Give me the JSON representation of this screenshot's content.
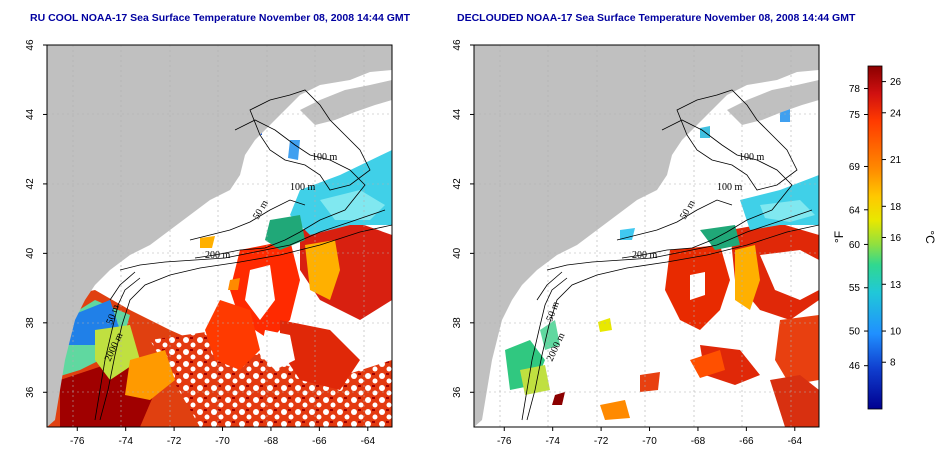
{
  "titles": {
    "left": "RU COOL NOAA-17 Sea Surface Temperature November 08, 2008 14:44 GMT",
    "right": "DECLOUDED NOAA-17 Sea Surface Temperature November 08, 2008 14:44 GMT"
  },
  "axes": {
    "x_ticks": [
      "-76",
      "-74",
      "-72",
      "-70",
      "-68",
      "-66",
      "-64"
    ],
    "x_values": [
      -76,
      -74,
      -72,
      -70,
      -68,
      -66,
      -64
    ],
    "y_ticks": [
      "36",
      "38",
      "40",
      "42",
      "44",
      "46"
    ],
    "y_values": [
      36,
      38,
      40,
      42,
      44,
      46
    ],
    "lon_range": [
      -77.25,
      -63.0
    ],
    "lat_range": [
      35.0,
      46.0
    ]
  },
  "contour_labels": {
    "left": [
      "100 m",
      "100 m",
      "50 m",
      "200 m",
      "50 m",
      "2000 m"
    ],
    "right": [
      "100 m",
      "100 m",
      "50 m",
      "200 m",
      "50 m",
      "2000 m"
    ]
  },
  "colorbar": {
    "fahrenheit_ticks": [
      "78",
      "75",
      "69",
      "64",
      "60",
      "55",
      "50",
      "46"
    ],
    "fahrenheit_values": [
      78,
      75,
      69,
      64,
      60,
      55,
      50,
      46
    ],
    "celsius_ticks": [
      "26",
      "24",
      "21",
      "18",
      "16",
      "13",
      "10",
      "8"
    ],
    "celsius_values": [
      26,
      24,
      21,
      18,
      16,
      13,
      10,
      8
    ],
    "celsius_range": [
      5,
      27
    ],
    "unit_left": "°F",
    "unit_right": "°C",
    "colors": [
      "#8b0000",
      "#d01010",
      "#ff3a00",
      "#ff8a00",
      "#ffc800",
      "#e8e800",
      "#90e040",
      "#30d890",
      "#20c8d8",
      "#2090ff",
      "#1040d0",
      "#000090"
    ]
  },
  "colors": {
    "land": "#c0c0c0",
    "ocean_blank": "#ffffff",
    "title": "#0000a0",
    "contour": "#000000",
    "grid": "#b0b0b0"
  }
}
